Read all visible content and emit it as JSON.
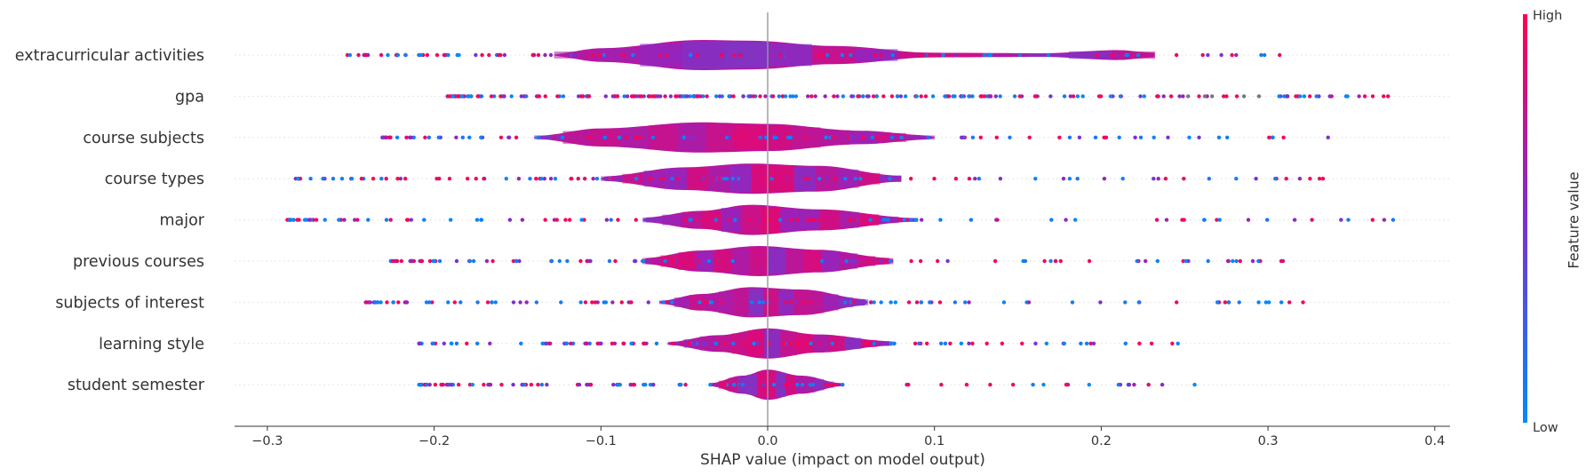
{
  "chart_data": {
    "type": "scatter",
    "subtype": "shap-violin-summary",
    "title": "",
    "xlabel": "SHAP value (impact on model output)",
    "ylabel": "",
    "xlim": [
      -0.32,
      0.41
    ],
    "xticks": [
      -0.3,
      -0.2,
      -0.1,
      0.0,
      0.1,
      0.2,
      0.3,
      0.4
    ],
    "xtick_labels": [
      "−0.3",
      "−0.2",
      "−0.1",
      "0.0",
      "0.1",
      "0.2",
      "0.3",
      "0.4"
    ],
    "zero_line": 0.0,
    "features": [
      {
        "name": "extracurricular activities",
        "dot_min": -0.252,
        "dot_max": 0.307,
        "body": [
          [
            -0.128,
            0.1
          ],
          [
            -0.1,
            0.45
          ],
          [
            -0.04,
            1.0
          ],
          [
            -0.01,
            0.95
          ],
          [
            0.04,
            0.6
          ],
          [
            0.1,
            0.15
          ],
          [
            0.165,
            0.12
          ],
          [
            0.21,
            0.33
          ],
          [
            0.232,
            0.15
          ]
        ]
      },
      {
        "name": "gpa",
        "dot_min": -0.192,
        "dot_max": 0.372,
        "body": []
      },
      {
        "name": "course subjects",
        "dot_min": -0.231,
        "dot_max": 0.336,
        "body": [
          [
            -0.14,
            0.1
          ],
          [
            -0.1,
            0.6
          ],
          [
            -0.04,
            1.0
          ],
          [
            0.0,
            0.9
          ],
          [
            0.055,
            0.45
          ],
          [
            0.1,
            0.12
          ]
        ]
      },
      {
        "name": "course types",
        "dot_min": -0.283,
        "dot_max": 0.333,
        "body": [
          [
            -0.1,
            0.15
          ],
          [
            -0.05,
            0.75
          ],
          [
            -0.01,
            1.0
          ],
          [
            0.03,
            0.85
          ],
          [
            0.08,
            0.2
          ]
        ]
      },
      {
        "name": "major",
        "dot_min": -0.288,
        "dot_max": 0.375,
        "body": [
          [
            -0.075,
            0.15
          ],
          [
            -0.04,
            0.6
          ],
          [
            -0.01,
            1.0
          ],
          [
            0.03,
            0.7
          ],
          [
            0.09,
            0.12
          ]
        ]
      },
      {
        "name": "previous courses",
        "dot_min": -0.226,
        "dot_max": 0.309,
        "body": [
          [
            -0.075,
            0.2
          ],
          [
            -0.04,
            0.7
          ],
          [
            -0.005,
            1.0
          ],
          [
            0.03,
            0.75
          ],
          [
            0.075,
            0.2
          ]
        ]
      },
      {
        "name": "subjects of interest",
        "dot_min": -0.241,
        "dot_max": 0.321,
        "body": [
          [
            -0.065,
            0.1
          ],
          [
            -0.04,
            0.55
          ],
          [
            -0.01,
            1.0
          ],
          [
            0.02,
            0.85
          ],
          [
            0.06,
            0.2
          ]
        ]
      },
      {
        "name": "learning style",
        "dot_min": -0.209,
        "dot_max": 0.246,
        "body": [
          [
            -0.06,
            0.1
          ],
          [
            -0.03,
            0.55
          ],
          [
            0.0,
            1.0
          ],
          [
            0.03,
            0.6
          ],
          [
            0.075,
            0.15
          ]
        ]
      },
      {
        "name": "student semester",
        "dot_min": -0.209,
        "dot_max": 0.256,
        "body": [
          [
            -0.035,
            0.1
          ],
          [
            -0.015,
            0.6
          ],
          [
            0.0,
            1.0
          ],
          [
            0.02,
            0.6
          ],
          [
            0.045,
            0.1
          ]
        ]
      }
    ],
    "colorbar": {
      "title": "Feature value",
      "high_label": "High",
      "low_label": "Low",
      "low_color": "#008bfb",
      "mid_color": "#7c2fd1",
      "high_color": "#ff0051"
    },
    "grid": false,
    "legend": "colorbar-right"
  }
}
